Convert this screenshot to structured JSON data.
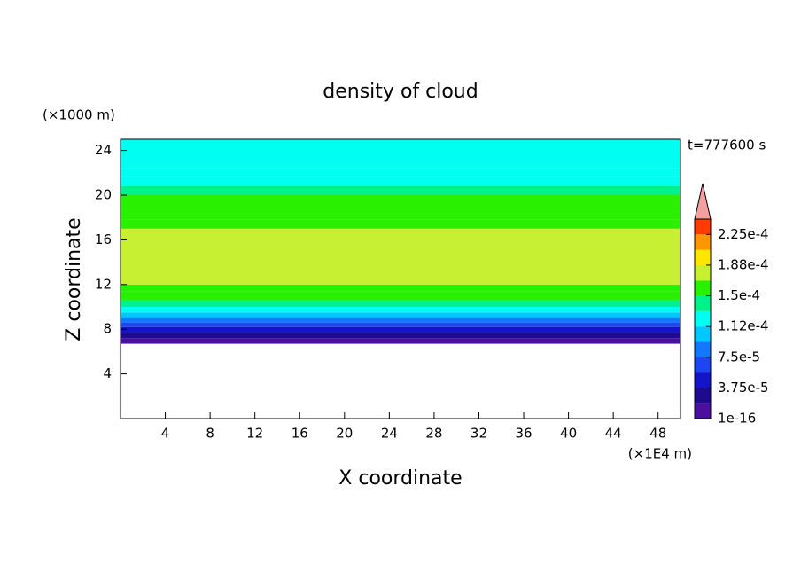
{
  "chart_data": {
    "type": "contour",
    "title": "density of cloud",
    "xlabel": "X coordinate",
    "ylabel": "Z coordinate",
    "x_unit": "(×1E4 m)",
    "y_unit": "(×1000 m)",
    "time_label": "t=777600 s",
    "xlim": [
      0,
      50
    ],
    "xticks": [
      4,
      8,
      12,
      16,
      20,
      24,
      28,
      32,
      36,
      40,
      44,
      48
    ],
    "ylim": [
      0,
      25
    ],
    "yticks": [
      4,
      8,
      12,
      16,
      20,
      24
    ],
    "field": {
      "z": [
        6.7,
        7.2,
        7.7,
        8.2,
        8.6,
        9.0,
        9.5,
        10.0,
        10.6,
        11.4,
        12.0,
        17.0,
        17.8,
        20.0,
        20.8,
        21.6,
        22.4,
        25
      ],
      "values": [
        1e-05,
        2.5e-05,
        4.5e-05,
        6.5e-05,
        8e-05,
        0.0001,
        0.00012,
        0.00014,
        0.000155,
        0.00016,
        0.00017,
        0.00016,
        0.000155,
        0.00014,
        0.000125,
        0.00012,
        0.000115
      ]
    },
    "clim": [
      1e-16,
      0.00024375
    ],
    "colors": [
      "#4b0fa0",
      "#1e0a8c",
      "#1414c8",
      "#1e46f0",
      "#1478ff",
      "#00c8ff",
      "#00fff0",
      "#00f08c",
      "#28f000",
      "#c8f032",
      "#ffe600",
      "#ff9600",
      "#ff3c00"
    ],
    "extend_color": "#f4a0a0",
    "cbticks": [
      {
        "value": 1e-16,
        "label": "1e-16"
      },
      {
        "value": 3.75e-05,
        "label": "3.75e-5"
      },
      {
        "value": 7.5e-05,
        "label": "7.5e-5"
      },
      {
        "value": 0.0001125,
        "label": "1.12e-4"
      },
      {
        "value": 0.00015,
        "label": "1.5e-4"
      },
      {
        "value": 0.0001875,
        "label": "1.88e-4"
      },
      {
        "value": 0.000225,
        "label": "2.25e-4"
      }
    ]
  }
}
